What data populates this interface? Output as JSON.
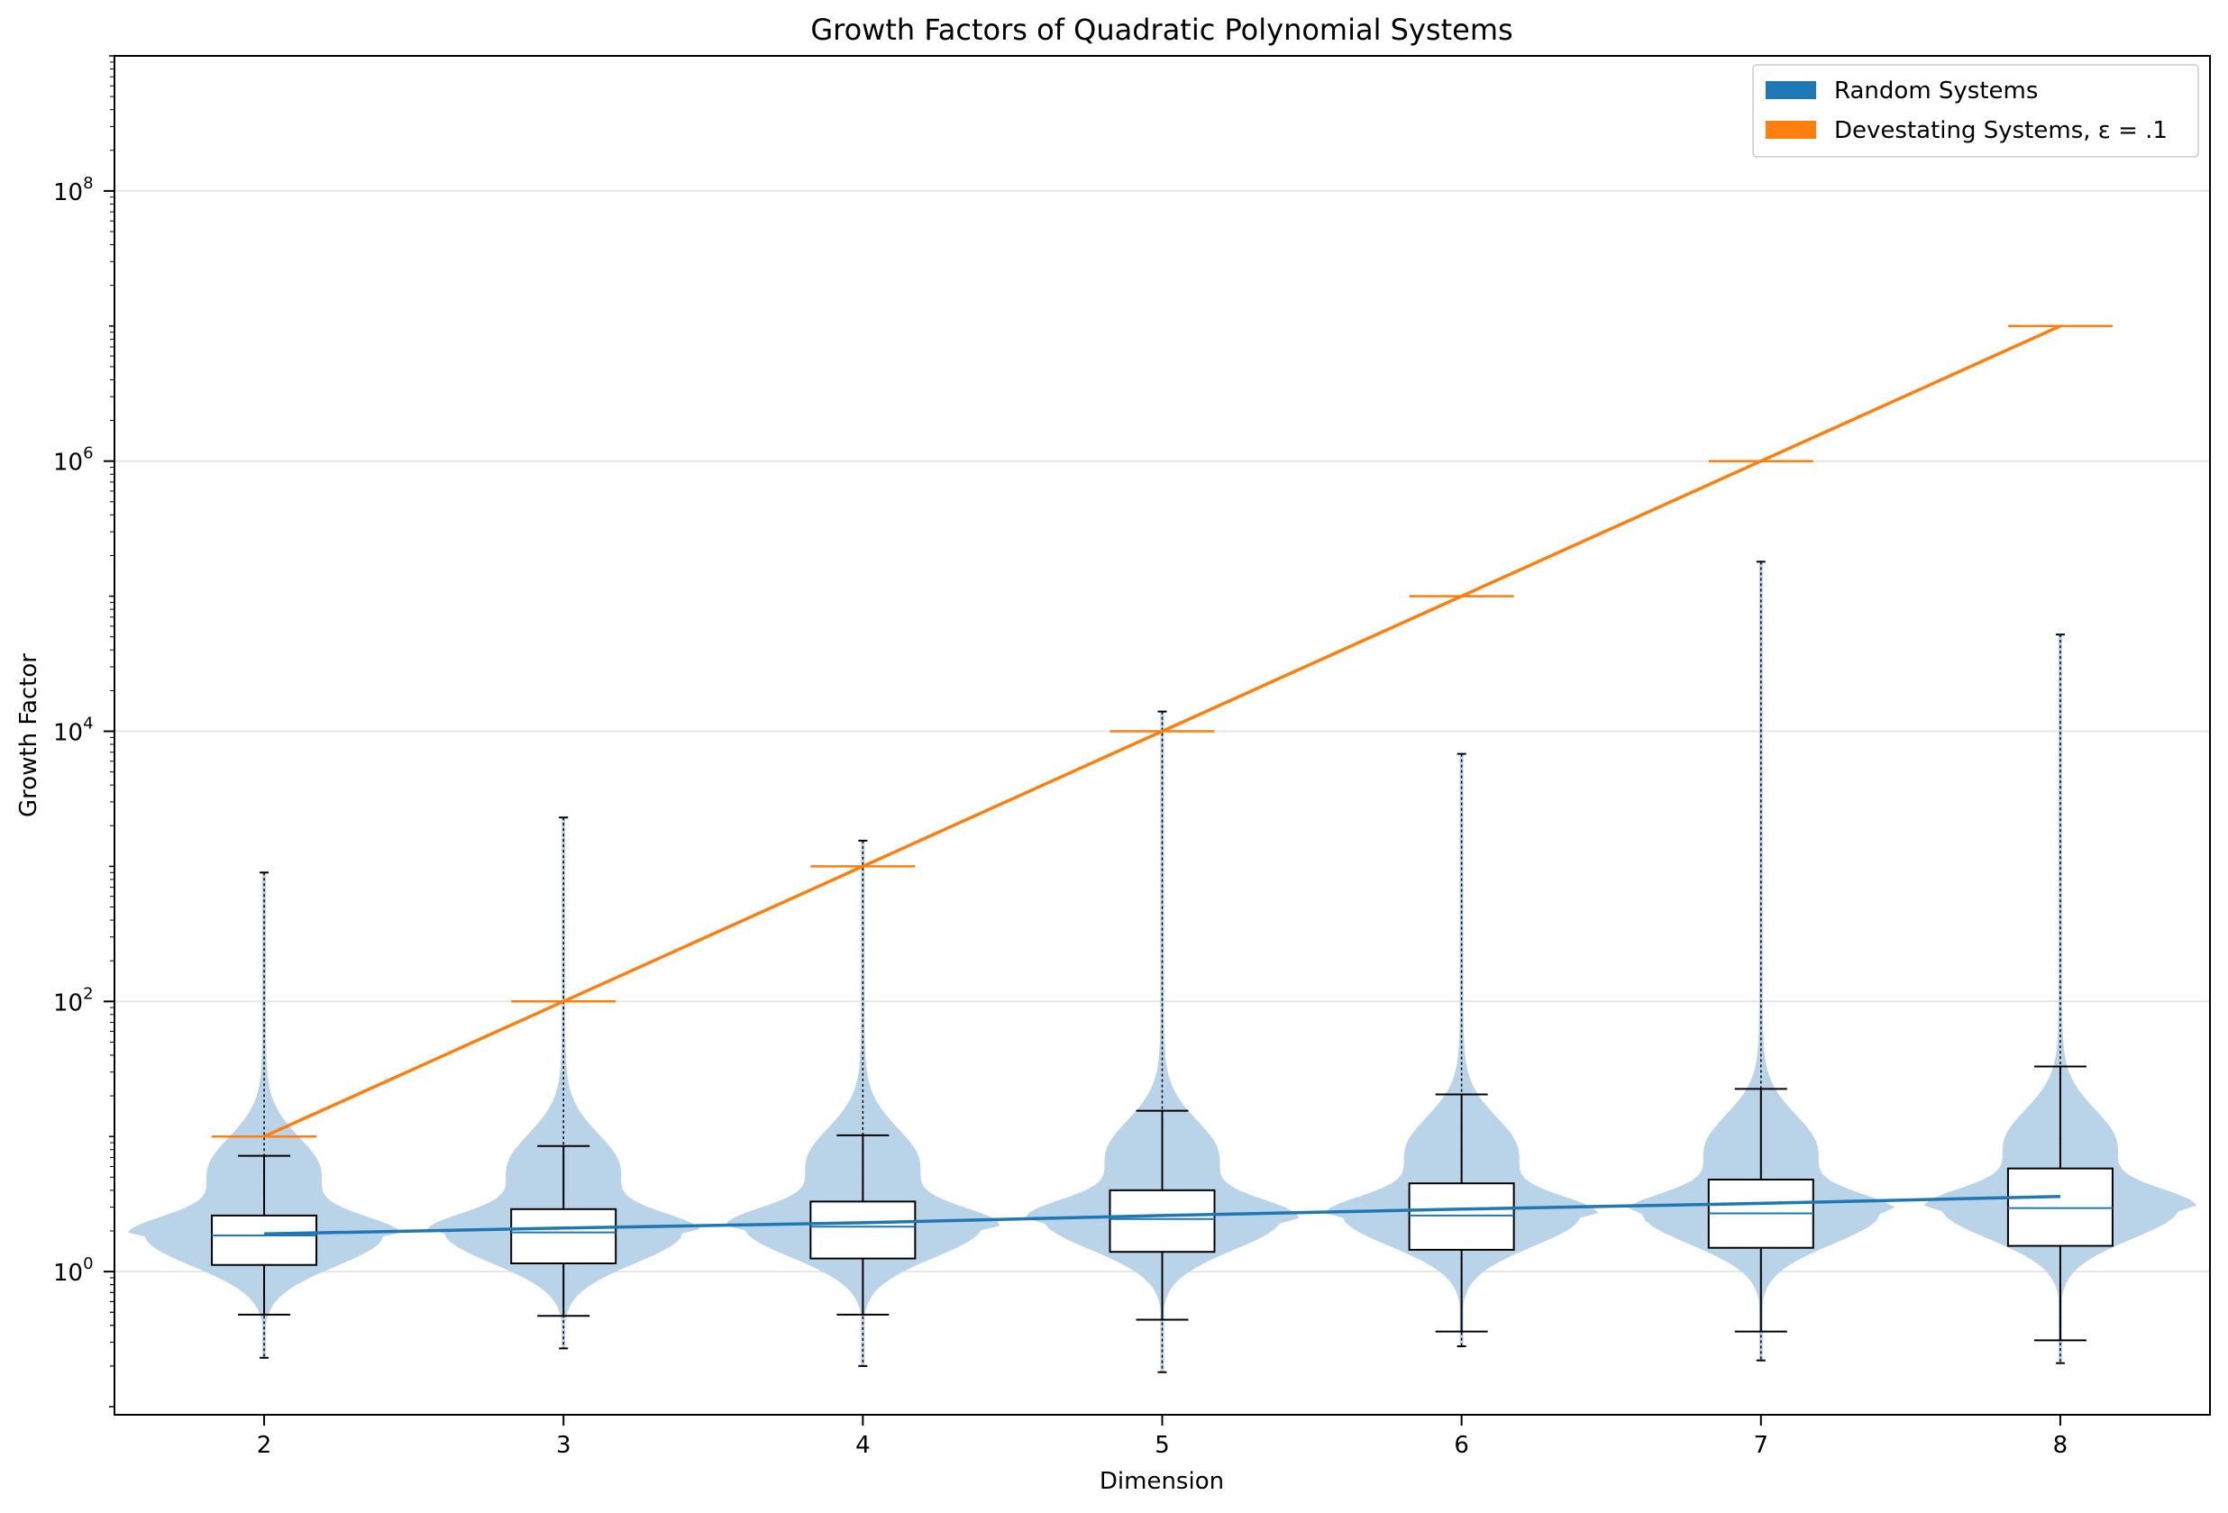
{
  "colors": {
    "random": "#1f77b4",
    "violin": "#b9d3e8",
    "devastating": "#ff7f0e",
    "grid": "#e6e6e6",
    "box_edge": "#000000"
  },
  "chart_data": {
    "type": "violin-box",
    "title": "Growth Factors of Quadratic Polynomial Systems",
    "xlabel": "Dimension",
    "ylabel": "Growth Factor",
    "yscale": "log",
    "ylim_exp": [
      -1.06,
      9.0
    ],
    "xlim": [
      1.5,
      8.5
    ],
    "grid": true,
    "legend_position": "top-right",
    "categories": [
      2,
      3,
      4,
      5,
      6,
      7,
      8
    ],
    "yticks": [
      {
        "base": "10",
        "exp": "0",
        "value": 1
      },
      {
        "base": "10",
        "exp": "2",
        "value": 100
      },
      {
        "base": "10",
        "exp": "4",
        "value": 10000
      },
      {
        "base": "10",
        "exp": "6",
        "value": 1000000
      },
      {
        "base": "10",
        "exp": "8",
        "value": 100000000
      }
    ],
    "legend": [
      {
        "label": "Random Systems",
        "series": "random"
      },
      {
        "label": "Devestating Systems, ε = .1",
        "series": "devastating"
      }
    ],
    "series": [
      {
        "name": "Random Systems",
        "median_line": [
          1.9,
          2.1,
          2.3,
          2.6,
          2.9,
          3.2,
          3.6
        ],
        "boxes": [
          {
            "dim": 2,
            "min": 0.23,
            "whisker_low": 0.48,
            "q1": 1.12,
            "median": 1.85,
            "q3": 2.6,
            "whisker_high": 7.2,
            "max": 900
          },
          {
            "dim": 3,
            "min": 0.27,
            "whisker_low": 0.47,
            "q1": 1.15,
            "median": 1.95,
            "q3": 2.9,
            "whisker_high": 8.5,
            "max": 2300
          },
          {
            "dim": 4,
            "min": 0.2,
            "whisker_low": 0.48,
            "q1": 1.25,
            "median": 2.15,
            "q3": 3.3,
            "whisker_high": 10.2,
            "max": 1550
          },
          {
            "dim": 5,
            "min": 0.18,
            "whisker_low": 0.44,
            "q1": 1.4,
            "median": 2.45,
            "q3": 4.0,
            "whisker_high": 15.5,
            "max": 14000
          },
          {
            "dim": 6,
            "min": 0.28,
            "whisker_low": 0.36,
            "q1": 1.45,
            "median": 2.6,
            "q3": 4.5,
            "whisker_high": 20.5,
            "max": 6800
          },
          {
            "dim": 7,
            "min": 0.22,
            "whisker_low": 0.36,
            "q1": 1.5,
            "median": 2.7,
            "q3": 4.8,
            "whisker_high": 22.5,
            "max": 180000
          },
          {
            "dim": 8,
            "min": 0.21,
            "whisker_low": 0.31,
            "q1": 1.55,
            "median": 2.95,
            "q3": 5.8,
            "whisker_high": 33,
            "max": 52000
          }
        ]
      },
      {
        "name": "Devestating Systems, ε = .1",
        "x": [
          2,
          3,
          4,
          5,
          6,
          7,
          8
        ],
        "values": [
          10,
          100,
          1000,
          10000,
          100000,
          1000000,
          10000000
        ]
      }
    ]
  }
}
